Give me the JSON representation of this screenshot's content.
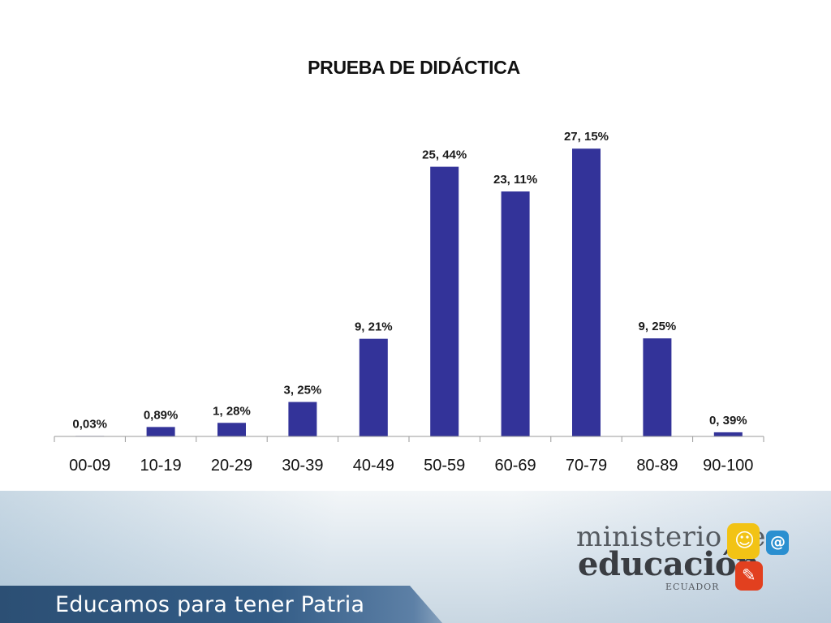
{
  "chart_data": {
    "type": "bar",
    "title": "PRUEBA DE DIDÁCTICA",
    "categories": [
      "00-09",
      "10-19",
      "20-29",
      "30-39",
      "40-49",
      "50-59",
      "60-69",
      "70-79",
      "80-89",
      "90-100"
    ],
    "values": [
      0.03,
      0.89,
      1.28,
      3.25,
      9.21,
      25.44,
      23.11,
      27.15,
      9.25,
      0.39
    ],
    "data_labels": [
      "0,03%",
      "0,89%",
      "1, 28%",
      "3, 25%",
      "9, 21%",
      "25, 44%",
      "23, 11%",
      "27, 15%",
      "9, 25%",
      "0, 39%"
    ],
    "ylim": [
      0,
      30
    ],
    "grid": false,
    "legend": "none",
    "bar_color": "#333399",
    "xlabel": "",
    "ylabel": ""
  },
  "footer": {
    "slogan": "Educamos para tener Patria",
    "logo": {
      "line1": "ministerio de",
      "line2": "educación",
      "country": "ECUADOR"
    }
  },
  "colors": {
    "accent": "#333399",
    "slogan_bar": "#2c4f74"
  }
}
